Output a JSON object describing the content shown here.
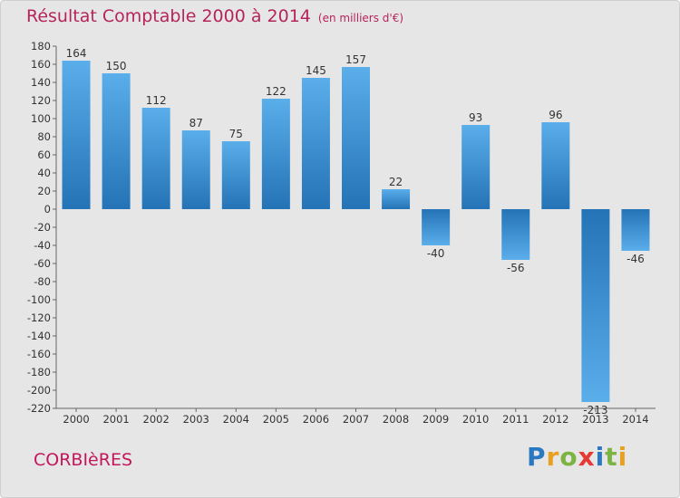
{
  "title": "Résultat Comptable 2000 à 2014",
  "unit_note": "(en milliers d'€)",
  "commune": "CORBIèRES",
  "logo": {
    "letters": [
      "P",
      "r",
      "o",
      "x",
      "i",
      "t",
      "i"
    ],
    "colors": [
      "#2b78c2",
      "#e8a020",
      "#7cb342",
      "#e53935",
      "#2b78c2",
      "#7cb342",
      "#e8a020"
    ]
  },
  "colors": {
    "title": "#b5245a",
    "commune": "#c2185b",
    "bar_light": "#5aaeea",
    "bar_dark": "#2473b6",
    "background": "#e6e6e6"
  },
  "chart_data": {
    "type": "bar",
    "title": "Résultat Comptable 2000 à 2014",
    "categories": [
      "2000",
      "2001",
      "2002",
      "2003",
      "2004",
      "2005",
      "2006",
      "2007",
      "2008",
      "2009",
      "2010",
      "2011",
      "2012",
      "2013",
      "2014"
    ],
    "values": [
      164,
      150,
      112,
      87,
      75,
      122,
      145,
      157,
      22,
      -40,
      93,
      -56,
      96,
      -213,
      -46
    ],
    "ylim": [
      -220,
      180
    ],
    "ytick_step": 20,
    "grid": false
  }
}
